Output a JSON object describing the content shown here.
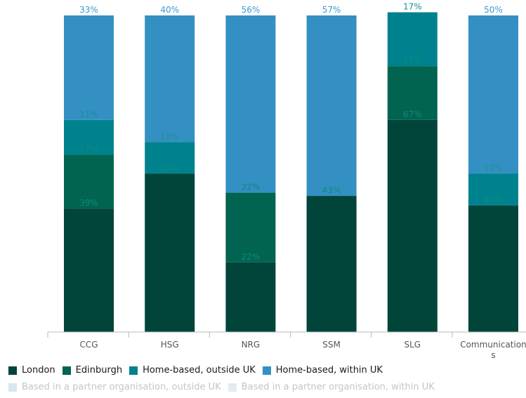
{
  "chart_data": {
    "type": "bar",
    "stacked": true,
    "categories": [
      "CCG",
      "HSG",
      "NRG",
      "SSM",
      "SLG",
      "Communications"
    ],
    "category_labels": [
      "CCG",
      "HSG",
      "NRG",
      "SSM",
      "SLG",
      "Communication s"
    ],
    "ylim": [
      0,
      100
    ],
    "series": [
      {
        "name": "London",
        "color": "#00443a",
        "label_color": "#0d8a7a",
        "values": [
          39,
          50,
          22,
          43,
          67,
          40
        ],
        "labels": [
          "39%",
          "50%",
          "22%",
          "43%",
          "67%",
          "40%"
        ]
      },
      {
        "name": "Edinburgh",
        "color": "#006450",
        "label_color": "#0d8a7a",
        "values": [
          17,
          0,
          22,
          0,
          17,
          0
        ],
        "labels": [
          "17%",
          "",
          "22%",
          "",
          "17%",
          ""
        ]
      },
      {
        "name": "Home-based, outside UK",
        "color": "#00828e",
        "label_color": "#1b8f9a",
        "values": [
          11,
          10,
          0,
          0,
          17,
          10
        ],
        "labels": [
          "11%",
          "10%",
          "",
          "",
          "17%",
          "10%"
        ]
      },
      {
        "name": "Home-based, within UK",
        "color": "#3490c2",
        "label_color": "#3a9ad0",
        "values": [
          33,
          40,
          56,
          57,
          0,
          50
        ],
        "labels": [
          "33%",
          "40%",
          "56%",
          "57%",
          "",
          "50%"
        ]
      },
      {
        "name": "Based in a partner organisation, outside UK",
        "color": "#d6e6f2",
        "values": [
          0,
          0,
          0,
          0,
          0,
          0
        ],
        "labels": [
          "",
          "",
          "",
          "",
          "",
          ""
        ]
      },
      {
        "name": "Based in a partner organisation, within UK",
        "color": "#e4ebf0",
        "values": [
          0,
          0,
          0,
          0,
          0,
          0
        ],
        "labels": [
          "",
          "",
          "",
          "",
          "",
          ""
        ]
      }
    ]
  },
  "legend": {
    "row1": [
      {
        "label": "London",
        "color": "#00443a"
      },
      {
        "label": "Edinburgh",
        "color": "#006450"
      },
      {
        "label": "Home-based, outside UK",
        "color": "#00828e"
      },
      {
        "label": "Home-based, within UK",
        "color": "#3490c2"
      }
    ],
    "row2": [
      {
        "label": "Based in a partner organisation, outside UK",
        "color": "#d6e6f2"
      },
      {
        "label": "Based in a partner organisation, within UK",
        "color": "#e4ebf0"
      }
    ]
  }
}
